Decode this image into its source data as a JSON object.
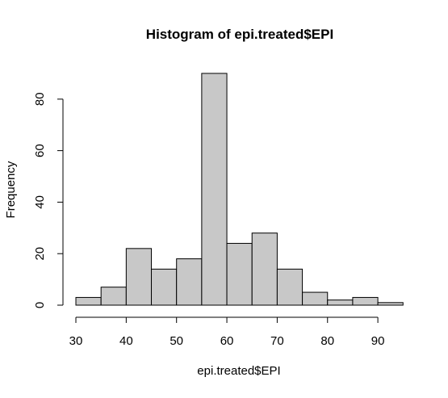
{
  "chart_data": {
    "type": "bar",
    "title": "Histogram of epi.treated$EPI",
    "xlabel": "epi.treated$EPI",
    "ylabel": "Frequency",
    "bins": [
      {
        "start": 30,
        "end": 35,
        "count": 3
      },
      {
        "start": 35,
        "end": 40,
        "count": 7
      },
      {
        "start": 40,
        "end": 45,
        "count": 22
      },
      {
        "start": 45,
        "end": 50,
        "count": 14
      },
      {
        "start": 50,
        "end": 55,
        "count": 18
      },
      {
        "start": 55,
        "end": 60,
        "count": 90
      },
      {
        "start": 60,
        "end": 65,
        "count": 24
      },
      {
        "start": 65,
        "end": 70,
        "count": 28
      },
      {
        "start": 70,
        "end": 75,
        "count": 14
      },
      {
        "start": 75,
        "end": 80,
        "count": 5
      },
      {
        "start": 80,
        "end": 85,
        "count": 2
      },
      {
        "start": 85,
        "end": 90,
        "count": 3
      },
      {
        "start": 90,
        "end": 95,
        "count": 1
      }
    ],
    "x_ticks": [
      30,
      40,
      50,
      60,
      70,
      80,
      90
    ],
    "y_ticks": [
      0,
      20,
      40,
      60,
      80
    ],
    "xlim": [
      30,
      95
    ],
    "ylim": [
      0,
      90
    ],
    "grid": false,
    "bar_fill": "#c8c8c8",
    "bar_stroke": "#000000"
  }
}
